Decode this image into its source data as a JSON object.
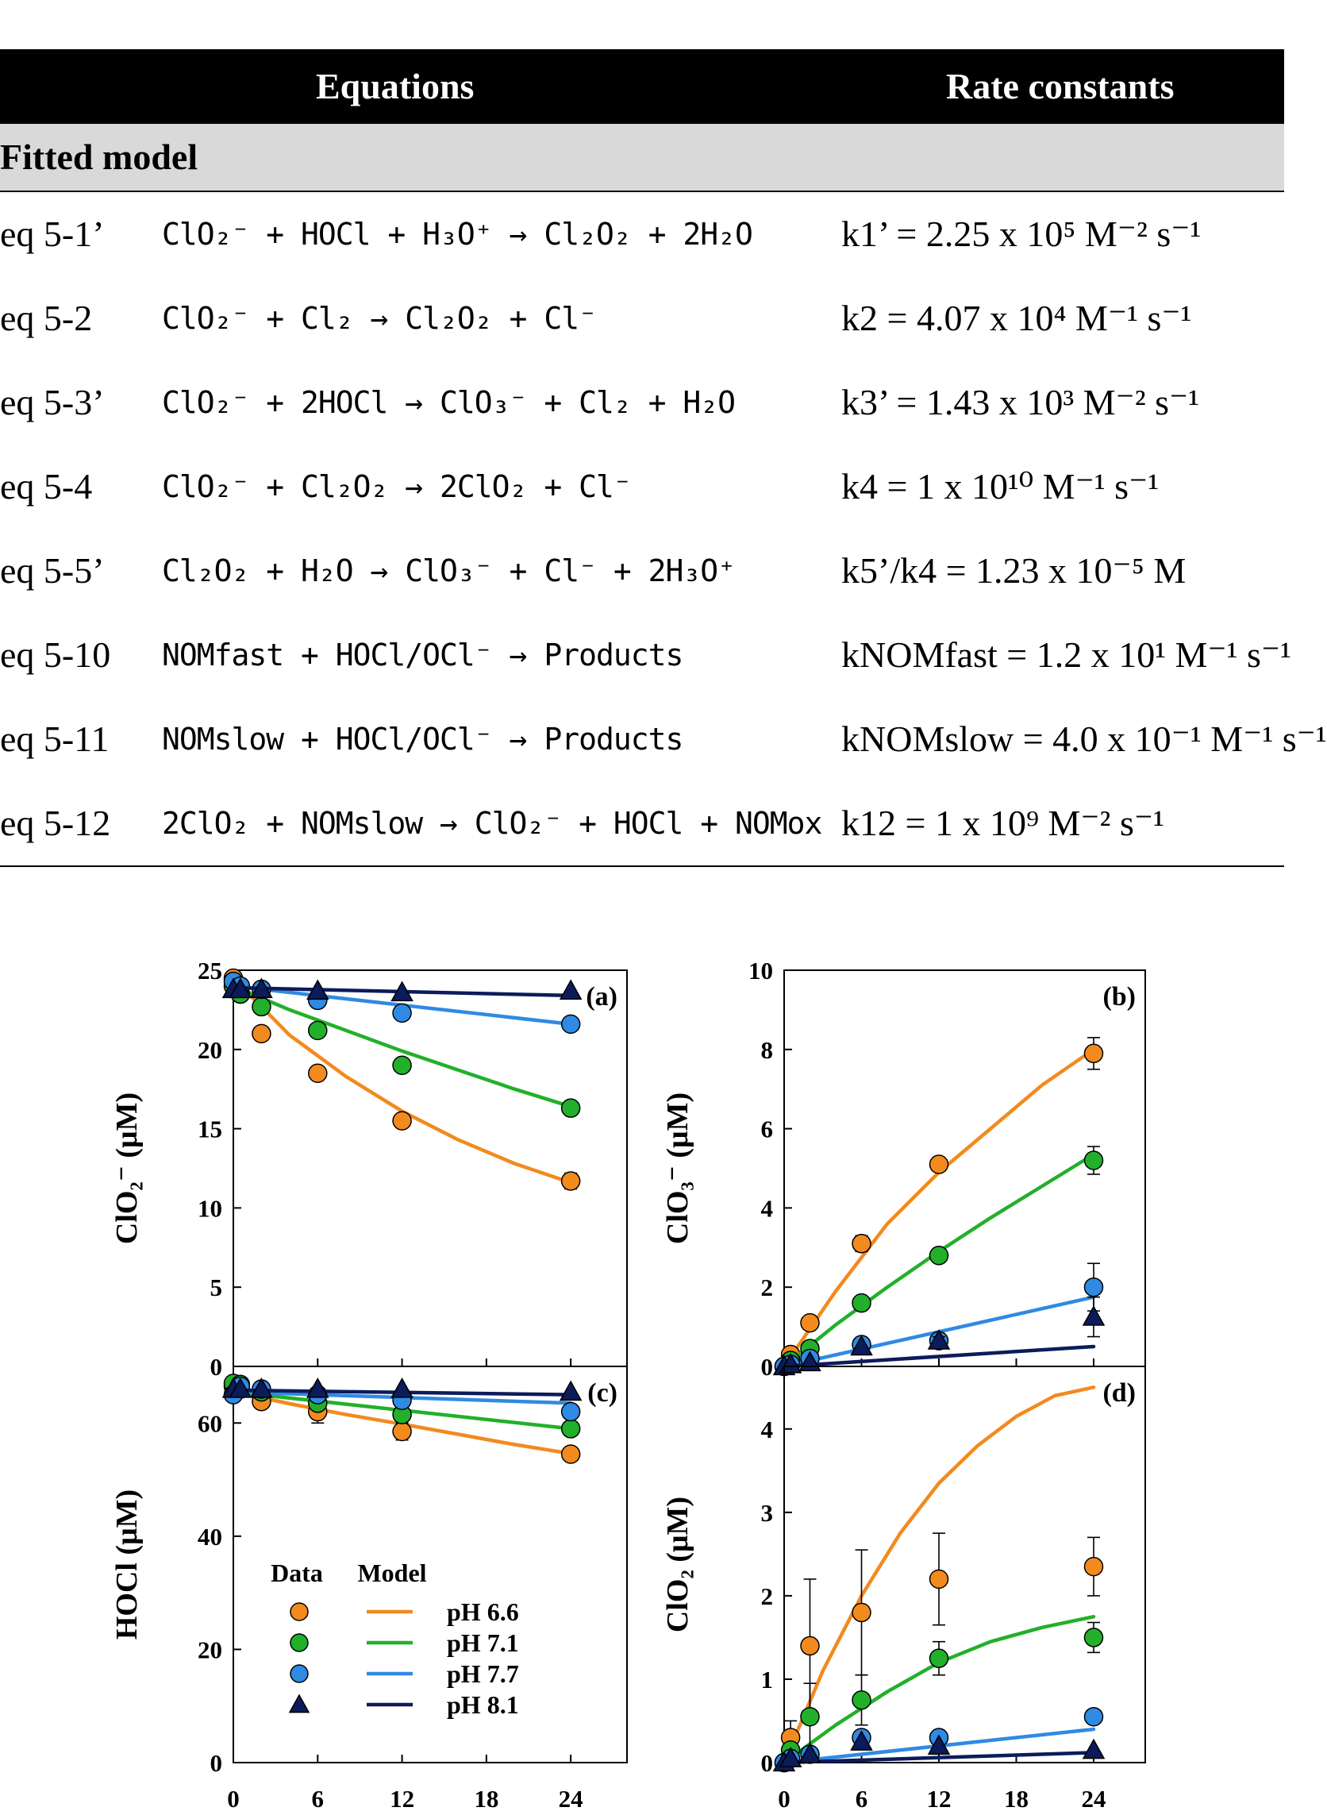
{
  "table": {
    "headers": {
      "equations": "Equations",
      "rate_constants": "Rate constants"
    },
    "section": "Fitted model",
    "rows": [
      {
        "label": "eq 5-1’",
        "equation": "ClO₂⁻ + HOCl +  H₃O⁺  →  Cl₂O₂ + 2H₂O",
        "rate": "k1’ = 2.25 x 10⁵ M⁻² s⁻¹"
      },
      {
        "label": "eq 5-2",
        "equation": "ClO₂⁻ +  Cl₂  →  Cl₂O₂ + Cl⁻",
        "rate": "k2 = 4.07 x 10⁴ M⁻¹ s⁻¹"
      },
      {
        "label": "eq 5-3’",
        "equation": "ClO₂⁻ + 2HOCl  →  ClO₃⁻ + Cl₂ + H₂O",
        "rate": "k3’ = 1.43 x 10³ M⁻² s⁻¹"
      },
      {
        "label": "eq 5-4",
        "equation": "ClO₂⁻ + Cl₂O₂  →  2ClO₂ + Cl⁻",
        "rate": "k4 = 1 x 10¹⁰ M⁻¹ s⁻¹"
      },
      {
        "label": "eq 5-5’",
        "equation": "Cl₂O₂ +  H₂O →  ClO₃⁻ + Cl⁻ + 2H₃O⁺",
        "rate": "k5’/k4 = 1.23 x 10⁻⁵ M"
      },
      {
        "label": "eq 5-10",
        "equation": "NOMfast +  HOCl/OCl⁻ →  Products",
        "rate": "kNOMfast = 1.2 x 10¹ M⁻¹ s⁻¹"
      },
      {
        "label": "eq 5-11",
        "equation": "NOMslow +  HOCl/OCl⁻ →  Products",
        "rate": "kNOMslow = 4.0 x 10⁻¹ M⁻¹ s⁻¹"
      },
      {
        "label": "eq 5-12",
        "equation": "2ClO₂ + NOMslow → ClO₂⁻ + HOCl + NOMox",
        "rate": "k12 = 1 x 10⁹ M⁻² s⁻¹"
      }
    ]
  },
  "figure": {
    "legend": {
      "data_header": "Data",
      "model_header": "Model",
      "entries": [
        {
          "label": "pH 6.6",
          "color": "#f28a1e",
          "marker": "circle"
        },
        {
          "label": "pH 7.1",
          "color": "#22b02a",
          "marker": "circle"
        },
        {
          "label": "pH 7.7",
          "color": "#2f8ae3",
          "marker": "circle"
        },
        {
          "label": "pH 8.1",
          "color": "#0c1b5a",
          "marker": "triangle"
        }
      ]
    },
    "x_ticks": [
      "0",
      "6",
      "12",
      "18",
      "24"
    ]
  },
  "chart_data": [
    {
      "type": "scatter",
      "panel": "(a)",
      "ylabel": "ClO₂⁻ (μM)",
      "xlim": [
        0,
        28
      ],
      "ylim": [
        0,
        25
      ],
      "y_ticks": [
        0,
        5,
        10,
        15,
        20,
        25
      ],
      "series": [
        {
          "name": "pH 6.6",
          "x": [
            0,
            0.25,
            0.5,
            2,
            6,
            12,
            24
          ],
          "y": [
            24.5,
            24.0,
            23.5,
            21.0,
            18.5,
            15.5,
            11.7
          ],
          "err": [
            0,
            0,
            0,
            0,
            0,
            0,
            0.5
          ],
          "model_x": [
            0,
            4,
            8,
            12,
            16,
            20,
            24
          ],
          "model_y": [
            24.5,
            20.9,
            18.3,
            16.1,
            14.3,
            12.8,
            11.6
          ]
        },
        {
          "name": "pH 7.1",
          "x": [
            0,
            0.5,
            2,
            6,
            12,
            24
          ],
          "y": [
            24.0,
            23.5,
            22.7,
            21.2,
            19.0,
            16.3
          ],
          "err": [
            0,
            0,
            0,
            0,
            0,
            0
          ],
          "model_x": [
            0,
            4,
            8,
            12,
            16,
            20,
            24
          ],
          "model_y": [
            24.0,
            22.5,
            21.2,
            19.9,
            18.7,
            17.5,
            16.4
          ]
        },
        {
          "name": "pH 7.7",
          "x": [
            0,
            0.5,
            2,
            6,
            12,
            24
          ],
          "y": [
            24.3,
            24.0,
            23.8,
            23.1,
            22.3,
            21.6
          ],
          "err": [
            0,
            0,
            0,
            0,
            0,
            0
          ],
          "model_x": [
            0,
            24
          ],
          "model_y": [
            24.0,
            21.6
          ]
        },
        {
          "name": "pH 8.1",
          "x": [
            0,
            0.5,
            2,
            6,
            12,
            24
          ],
          "y": [
            23.8,
            23.8,
            23.8,
            23.7,
            23.6,
            23.7
          ],
          "err": [
            0,
            0,
            0,
            0,
            0,
            0
          ],
          "model_x": [
            0,
            24
          ],
          "model_y": [
            23.9,
            23.4
          ]
        }
      ]
    },
    {
      "type": "scatter",
      "panel": "(b)",
      "ylabel": "ClO₃⁻ (μM)",
      "xlim": [
        0,
        28
      ],
      "ylim": [
        0,
        10
      ],
      "y_ticks": [
        0,
        2,
        4,
        6,
        8,
        10
      ],
      "series": [
        {
          "name": "pH 6.6",
          "x": [
            0,
            0.5,
            2,
            6,
            12,
            24
          ],
          "y": [
            0,
            0.3,
            1.1,
            3.1,
            5.1,
            7.9
          ],
          "err": [
            0,
            0.1,
            0.15,
            0.2,
            0.1,
            0.4
          ],
          "model_x": [
            0,
            4,
            8,
            12,
            16,
            20,
            24
          ],
          "model_y": [
            0,
            1.9,
            3.6,
            4.9,
            6.0,
            7.1,
            8.0
          ]
        },
        {
          "name": "pH 7.1",
          "x": [
            0,
            0.5,
            2,
            6,
            12,
            24
          ],
          "y": [
            0,
            0.15,
            0.45,
            1.6,
            2.8,
            5.2
          ],
          "err": [
            0,
            0,
            0.1,
            0.1,
            0.1,
            0.35
          ],
          "model_x": [
            0,
            4,
            8,
            12,
            16,
            20,
            24
          ],
          "model_y": [
            0,
            1.05,
            2.0,
            2.9,
            3.75,
            4.55,
            5.35
          ]
        },
        {
          "name": "pH 7.7",
          "x": [
            0,
            0.5,
            2,
            6,
            12,
            24
          ],
          "y": [
            0,
            0.05,
            0.2,
            0.55,
            0.65,
            2.0
          ],
          "err": [
            0,
            0,
            0,
            0.1,
            0.1,
            0.6
          ],
          "model_x": [
            0,
            24
          ],
          "model_y": [
            0,
            1.75
          ]
        },
        {
          "name": "pH 8.1",
          "x": [
            0,
            0.5,
            2,
            6,
            12,
            24
          ],
          "y": [
            0,
            0.05,
            0.1,
            0.5,
            0.65,
            1.25
          ],
          "err": [
            0,
            0,
            0,
            0,
            0.1,
            0.5
          ],
          "model_x": [
            0,
            24
          ],
          "model_y": [
            0,
            0.5
          ]
        }
      ]
    },
    {
      "type": "scatter",
      "panel": "(c)",
      "ylabel": "HOCl (μM)",
      "xlabel": "",
      "xlim": [
        0,
        28
      ],
      "ylim": [
        0,
        70
      ],
      "y_ticks": [
        0,
        20,
        40,
        60
      ],
      "series": [
        {
          "name": "pH 6.6",
          "x": [
            0,
            0.5,
            2,
            6,
            12,
            24
          ],
          "y": [
            66.5,
            66.0,
            63.8,
            62.0,
            58.5,
            54.5
          ],
          "err": [
            0,
            0,
            1.0,
            2.0,
            1.5,
            0.8
          ],
          "model_x": [
            0,
            4,
            8,
            12,
            16,
            20,
            24
          ],
          "model_y": [
            65.5,
            63.4,
            61.5,
            59.8,
            58.0,
            56.2,
            54.6
          ]
        },
        {
          "name": "pH 7.1",
          "x": [
            0,
            0.5,
            2,
            6,
            12,
            24
          ],
          "y": [
            67.0,
            66.8,
            65.5,
            63.5,
            61.5,
            59.0
          ],
          "err": [
            0,
            0,
            0,
            0,
            0,
            0
          ],
          "model_x": [
            0,
            24
          ],
          "model_y": [
            65.5,
            59.0
          ]
        },
        {
          "name": "pH 7.7",
          "x": [
            0,
            0.5,
            2,
            6,
            12,
            24
          ],
          "y": [
            65.0,
            66.5,
            66.0,
            65.0,
            64.0,
            62.0
          ],
          "err": [
            0,
            0,
            0,
            0,
            0,
            0
          ],
          "model_x": [
            0,
            24
          ],
          "model_y": [
            65.5,
            63.5
          ]
        },
        {
          "name": "pH 8.1",
          "x": [
            0,
            0.5,
            2,
            6,
            12,
            24
          ],
          "y": [
            66.0,
            66.0,
            66.0,
            66.0,
            66.0,
            65.5
          ],
          "err": [
            0,
            0,
            0,
            0,
            0,
            0
          ],
          "model_x": [
            0,
            24
          ],
          "model_y": [
            65.8,
            65.0
          ]
        }
      ]
    },
    {
      "type": "scatter",
      "panel": "(d)",
      "ylabel": "ClO₂ (μM)",
      "xlabel": "",
      "xlim": [
        0,
        28
      ],
      "ylim": [
        0,
        4.75
      ],
      "y_ticks": [
        0,
        1,
        2,
        3,
        4
      ],
      "series": [
        {
          "name": "pH 6.6",
          "x": [
            0,
            0.5,
            2,
            6,
            12,
            24
          ],
          "y": [
            0,
            0.3,
            1.4,
            1.8,
            2.2,
            2.35
          ],
          "err": [
            0,
            0.2,
            0.8,
            0.75,
            0.55,
            0.35
          ],
          "model_x": [
            0,
            3,
            6,
            9,
            12,
            15,
            18,
            21,
            24
          ],
          "model_y": [
            0,
            1.1,
            2.0,
            2.75,
            3.35,
            3.8,
            4.15,
            4.4,
            4.5
          ]
        },
        {
          "name": "pH 7.1",
          "x": [
            0,
            0.5,
            2,
            6,
            12,
            24
          ],
          "y": [
            0,
            0.15,
            0.55,
            0.75,
            1.25,
            1.5
          ],
          "err": [
            0,
            0,
            0.4,
            0.3,
            0.2,
            0.18
          ],
          "model_x": [
            0,
            4,
            8,
            12,
            16,
            20,
            24
          ],
          "model_y": [
            0,
            0.45,
            0.85,
            1.2,
            1.45,
            1.62,
            1.75
          ]
        },
        {
          "name": "pH 7.7",
          "x": [
            0,
            0.5,
            2,
            6,
            12,
            24
          ],
          "y": [
            0,
            0.05,
            0.1,
            0.3,
            0.3,
            0.55
          ],
          "err": [
            0,
            0,
            0,
            0,
            0,
            0
          ],
          "model_x": [
            0,
            24
          ],
          "model_y": [
            0,
            0.4
          ]
        },
        {
          "name": "pH 8.1",
          "x": [
            0,
            0.5,
            2,
            6,
            12,
            24
          ],
          "y": [
            0,
            0.05,
            0.1,
            0.25,
            0.2,
            0.15
          ],
          "err": [
            0,
            0,
            0,
            0,
            0,
            0
          ],
          "model_x": [
            0,
            24
          ],
          "model_y": [
            0,
            0.12
          ]
        }
      ]
    }
  ]
}
